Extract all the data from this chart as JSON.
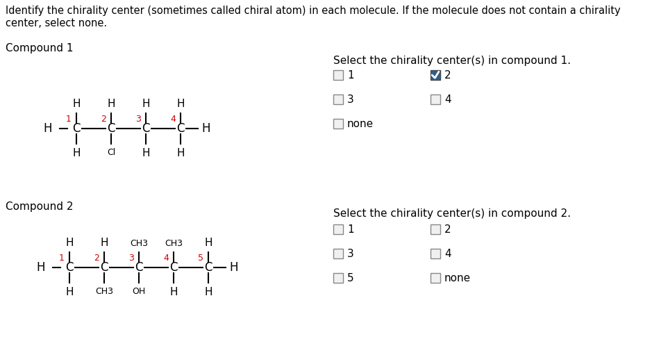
{
  "bg_color": "#ffffff",
  "title_line1": "Identify the chirality center (sometimes called chiral atom) in each molecule. If the molecule does not contain a chirality",
  "title_line2": "center, select none.",
  "compound1_label": "Compound 1",
  "compound2_label": "Compound 2",
  "select1_label": "Select the chirality center(s) in compound 1.",
  "select2_label": "Select the chirality center(s) in compound 2.",
  "font_color": "#000000",
  "label_color": "#3c3c3c",
  "red_color": "#cc0000",
  "checked_fill": "#2e5f8a",
  "check_border": "#888888",
  "c1_above": [
    "H",
    "H",
    "H",
    "H"
  ],
  "c1_below": [
    "H",
    "Cl",
    "H",
    "H"
  ],
  "c1_nums": [
    "1",
    "2",
    "3",
    "4"
  ],
  "c2_above": [
    "H",
    "H",
    "CH3",
    "CH3",
    "H"
  ],
  "c2_below": [
    "H",
    "CH3",
    "OH",
    "H",
    "H"
  ],
  "c2_nums": [
    "1",
    "2",
    "3",
    "4",
    "5"
  ],
  "check1_labels": [
    "1",
    "2",
    "3",
    "4",
    "none"
  ],
  "check1_checked": [
    false,
    true,
    false,
    false,
    false
  ],
  "check1_col": [
    0,
    1,
    0,
    1,
    0
  ],
  "check1_row": [
    0,
    0,
    1,
    1,
    2
  ],
  "check2_labels": [
    "1",
    "2",
    "3",
    "4",
    "5",
    "none"
  ],
  "check2_checked": [
    false,
    false,
    false,
    false,
    false,
    false
  ],
  "check2_col": [
    0,
    1,
    0,
    1,
    0,
    1
  ],
  "check2_row": [
    0,
    0,
    1,
    1,
    2,
    2
  ]
}
